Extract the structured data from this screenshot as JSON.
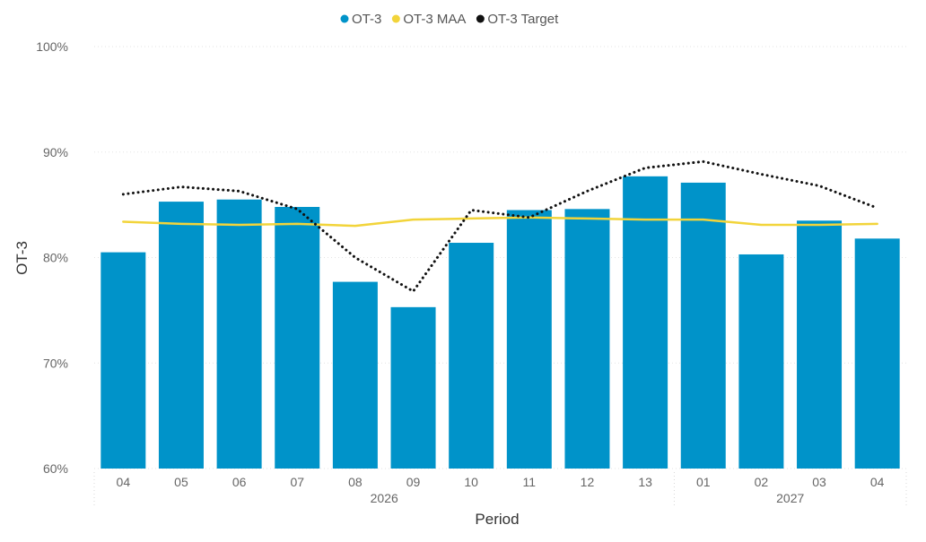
{
  "chart_data": {
    "type": "bar",
    "categories": [
      "04",
      "05",
      "06",
      "07",
      "08",
      "09",
      "10",
      "11",
      "12",
      "13",
      "01",
      "02",
      "03",
      "04"
    ],
    "groups": [
      {
        "label": "2026",
        "start": 0,
        "end": 9
      },
      {
        "label": "2027",
        "start": 10,
        "end": 13
      }
    ],
    "series": [
      {
        "name": "OT-3",
        "type": "bar",
        "color": "#0093C9",
        "values": [
          80.5,
          85.3,
          85.5,
          84.8,
          77.7,
          75.3,
          81.4,
          84.5,
          84.6,
          87.7,
          87.1,
          80.3,
          83.5,
          81.8
        ]
      },
      {
        "name": "OT-3 MAA",
        "type": "line",
        "style": "solid",
        "color": "#F2D43A",
        "values": [
          83.4,
          83.2,
          83.1,
          83.2,
          83.0,
          83.6,
          83.7,
          83.8,
          83.7,
          83.6,
          83.6,
          83.1,
          83.1,
          83.2
        ]
      },
      {
        "name": "OT-3 Target",
        "type": "line",
        "style": "dotted",
        "color": "#111111",
        "values": [
          86.0,
          86.7,
          86.3,
          84.6,
          80.0,
          76.8,
          84.5,
          83.8,
          86.3,
          88.5,
          89.1,
          87.9,
          86.8,
          84.7
        ]
      }
    ],
    "xlabel": "Period",
    "ylabel": "OT-3",
    "ylim": [
      60,
      100
    ],
    "yticks": [
      60,
      70,
      80,
      90,
      100
    ],
    "ytick_labels": [
      "60%",
      "70%",
      "80%",
      "90%",
      "100%"
    ],
    "grid": true,
    "legend_position": "top-center"
  }
}
